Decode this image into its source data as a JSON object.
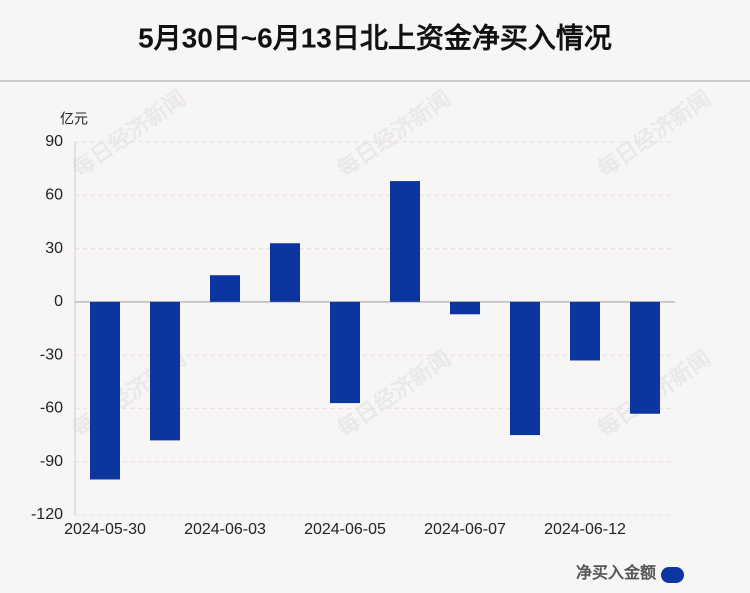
{
  "chart_data": {
    "type": "bar",
    "title": "5月30日~6月13日北上资金净买入情况",
    "y_unit": "亿元",
    "watermark": "每日经济新闻",
    "categories": [
      "2024-05-30",
      null,
      "2024-06-03",
      null,
      "2024-06-05",
      null,
      "2024-06-07",
      null,
      "2024-06-12",
      null
    ],
    "series": [
      {
        "name": "净买入金额",
        "color": "#0d35a0",
        "values": [
          -100,
          -78,
          15,
          33,
          -57,
          68,
          -7,
          -75,
          -33,
          -63
        ]
      }
    ],
    "ylim": [
      -120,
      90
    ],
    "yticks": [
      -120,
      -90,
      -60,
      -30,
      0,
      30,
      60,
      90
    ],
    "grid": true
  }
}
